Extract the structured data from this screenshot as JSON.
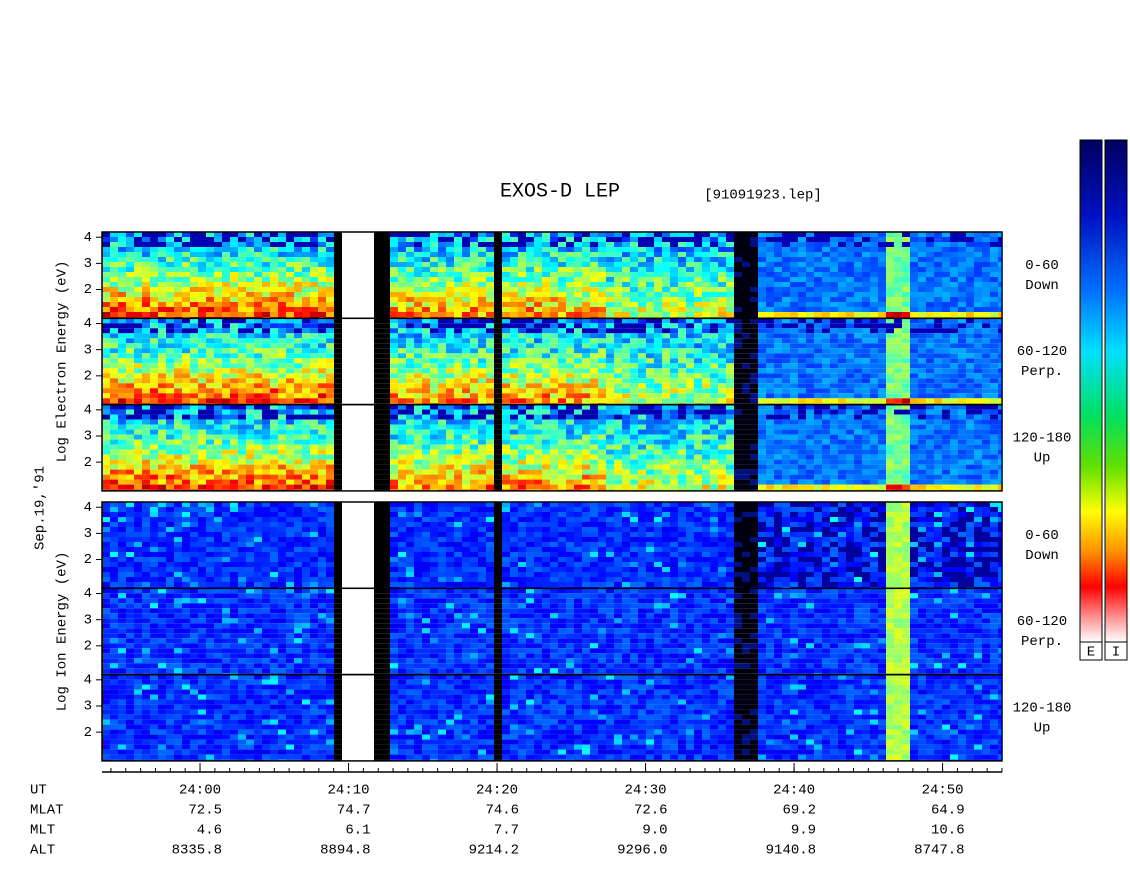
{
  "chart_data": {
    "type": "spectrogram",
    "title": "EXOS-D LEP",
    "file_label": "[91091923.lep]",
    "date_label": "Sep.19,'91",
    "panel_groups": [
      {
        "ylabel": "Log Electron Energy (eV)",
        "species": "electron",
        "panels": [
          {
            "angle": "0-60",
            "direction": "Down"
          },
          {
            "angle": "60-120",
            "direction": "Perp."
          },
          {
            "angle": "120-180",
            "direction": "Up"
          }
        ]
      },
      {
        "ylabel": "Log Ion Energy (eV)",
        "species": "ion",
        "panels": [
          {
            "angle": "0-60",
            "direction": "Down"
          },
          {
            "angle": "60-120",
            "direction": "Perp."
          },
          {
            "angle": "120-180",
            "direction": "Up"
          }
        ]
      }
    ],
    "ylim": [
      0.9,
      4.2
    ],
    "yticks": [
      2,
      3,
      4
    ],
    "xlim": [
      1433.4,
      1494.0
    ],
    "xticks": [
      {
        "value": 1440,
        "label": "24:00"
      },
      {
        "value": 1450,
        "label": "24:10"
      },
      {
        "value": 1460,
        "label": "24:20"
      },
      {
        "value": 1470,
        "label": "24:30"
      },
      {
        "value": 1480,
        "label": "24:40"
      },
      {
        "value": 1490,
        "label": "24:50"
      }
    ],
    "orbit": {
      "time_row": "UT",
      "rows": [
        {
          "name": "MLAT",
          "values": [
            "72.5",
            "74.7",
            "74.6",
            "72.6",
            "69.2",
            "64.9"
          ]
        },
        {
          "name": "MLT",
          "values": [
            "4.6",
            "6.1",
            "7.7",
            "9.0",
            "9.9",
            "10.6"
          ]
        },
        {
          "name": "ALT",
          "values": [
            "8335.8",
            "8894.8",
            "9214.2",
            "9296.0",
            "9140.8",
            "8747.8"
          ]
        }
      ]
    },
    "colorbar_labels": [
      "E",
      "I"
    ]
  }
}
